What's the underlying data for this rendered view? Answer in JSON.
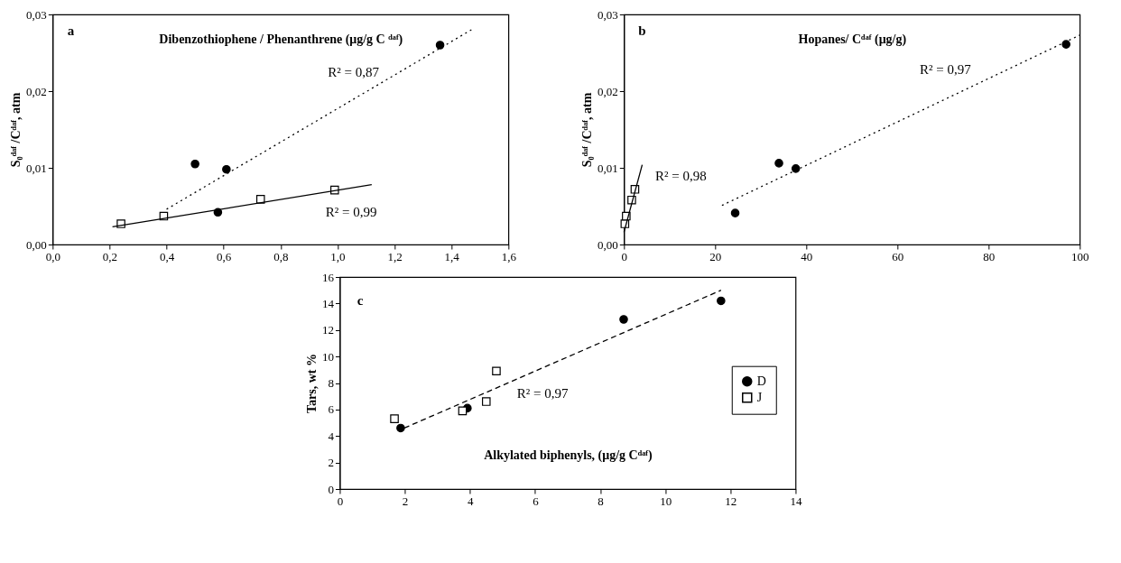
{
  "chart_data": [
    {
      "type": "scatter",
      "xlabel": "Dibenzothiophene / Phenanthrene (μg/g C ᵈᵃᶠ)",
      "ylabel": "S₀ᵈᵃᶠ /Cᵈᵃᶠ, atm",
      "xlim": [
        0,
        1.6
      ],
      "ylim": [
        0,
        0.03
      ],
      "xticks": [
        {
          "value": 0,
          "label": "0,0"
        },
        {
          "value": 0.2,
          "label": "0,2"
        },
        {
          "value": 0.4,
          "label": "0,4"
        },
        {
          "value": 0.6,
          "label": "0,6"
        },
        {
          "value": 0.8,
          "label": "0,8"
        },
        {
          "value": 1,
          "label": "1,0"
        },
        {
          "value": 1.2,
          "label": "1,2"
        },
        {
          "value": 1.4,
          "label": "1,4"
        },
        {
          "value": 1.6,
          "label": "1,6"
        }
      ],
      "yticks": [
        {
          "value": 0,
          "label": "0,00"
        },
        {
          "value": 0.01,
          "label": "0,01"
        },
        {
          "value": 0.02,
          "label": "0,02"
        },
        {
          "value": 0.03,
          "label": "0,03"
        }
      ],
      "series": [
        {
          "type": "scatter",
          "marker": "circle",
          "color": "#000000",
          "x": [
            0.5,
            0.61,
            0.58,
            1.36
          ],
          "values": [
            0.0105,
            0.0098,
            0.0042,
            0.026
          ]
        },
        {
          "type": "scatter",
          "marker": "square",
          "color": "#000000",
          "x": [
            0.24,
            0.39,
            0.73,
            0.99
          ],
          "values": [
            0.0027,
            0.0037,
            0.0059,
            0.0071
          ]
        },
        {
          "type": "line",
          "marker": "none",
          "line_style": "dotted",
          "color": "#000000",
          "x": [
            0.4,
            1.47
          ],
          "values": [
            0.0046,
            0.028
          ]
        },
        {
          "type": "line",
          "marker": "none",
          "line_style": "solid",
          "color": "#000000",
          "x": [
            0.21,
            1.12
          ],
          "values": [
            0.0023,
            0.0078
          ]
        }
      ],
      "annotations": [
        "a",
        "R² = 0,87",
        "R² = 0,99"
      ]
    },
    {
      "type": "scatter",
      "xlabel": "Hopanes/ Cᵈᵃᶠ (μg/g)",
      "ylabel": "S₀ᵈᵃᶠ /Cᵈᵃᶠ, atm",
      "xlim": [
        0,
        100
      ],
      "ylim": [
        0,
        0.03
      ],
      "xticks": [
        0,
        20,
        40,
        60,
        80,
        100
      ],
      "yticks": [
        {
          "value": 0,
          "label": "0,00"
        },
        {
          "value": 0.01,
          "label": "0,01"
        },
        {
          "value": 0.02,
          "label": "0,02"
        },
        {
          "value": 0.03,
          "label": "0,03"
        }
      ],
      "series": [
        {
          "type": "scatter",
          "marker": "circle",
          "color": "#000000",
          "x": [
            24.4,
            34,
            37.7,
            97
          ],
          "values": [
            0.0041,
            0.0106,
            0.0099,
            0.0261
          ]
        },
        {
          "type": "scatter",
          "marker": "square",
          "color": "#000000",
          "x": [
            0.2,
            0.5,
            1.7,
            2.4
          ],
          "values": [
            0.0027,
            0.0037,
            0.0058,
            0.0072
          ]
        },
        {
          "type": "line",
          "marker": "none",
          "line_style": "dotted",
          "color": "#000000",
          "x": [
            21.5,
            100
          ],
          "values": [
            0.0051,
            0.0273
          ]
        },
        {
          "type": "line",
          "marker": "none",
          "line_style": "solid",
          "color": "#000000",
          "x": [
            0,
            4
          ],
          "values": [
            0.0016,
            0.0104
          ]
        }
      ],
      "annotations": [
        "b",
        "R² = 0,98",
        "R² = 0,97"
      ]
    },
    {
      "type": "scatter",
      "xlabel": "Alkylated biphenyls, (μg/g Cᵈᵃᶠ)",
      "ylabel": "Tars, wt %",
      "xlim": [
        0,
        14
      ],
      "ylim": [
        0,
        16
      ],
      "xticks": [
        0,
        2,
        4,
        6,
        8,
        10,
        12,
        14
      ],
      "yticks": [
        0,
        2,
        4,
        6,
        8,
        10,
        12,
        14,
        16
      ],
      "legend": "right",
      "series": [
        {
          "type": "scatter",
          "name": "D",
          "marker": "circle",
          "color": "#000000",
          "x": [
            1.87,
            3.92,
            8.72,
            11.71
          ],
          "values": [
            4.6,
            6.1,
            12.8,
            14.2
          ]
        },
        {
          "type": "scatter",
          "name": "J",
          "marker": "square",
          "color": "#000000",
          "x": [
            1.68,
            3.77,
            4.5,
            4.81
          ],
          "values": [
            5.3,
            5.9,
            6.6,
            8.9
          ]
        },
        {
          "type": "line",
          "marker": "none",
          "line_style": "dashed",
          "color": "#000000",
          "x": [
            1.98,
            11.71
          ],
          "values": [
            4.6,
            15
          ]
        }
      ],
      "annotations": [
        "c",
        "R² = 0,97"
      ]
    }
  ]
}
